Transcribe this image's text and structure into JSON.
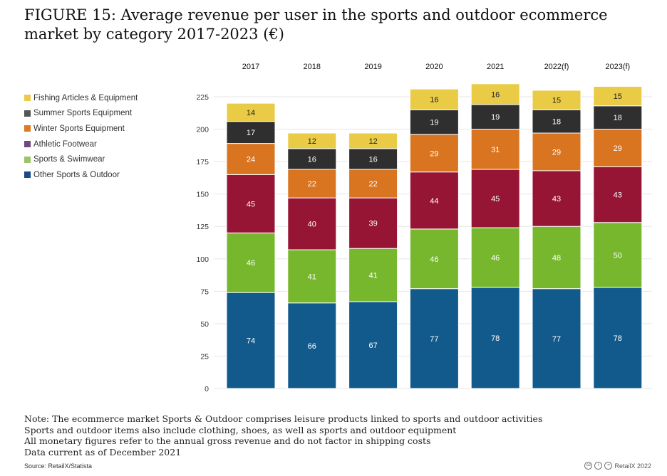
{
  "title": "FIGURE 15: Average revenue per user in the sports and outdoor ecommerce market by category 2017-2023 (€)",
  "legend": [
    {
      "label": "Fishing Articles & Equipment",
      "color": "#ecc94b"
    },
    {
      "label": "Summer Sports Equipment",
      "color": "#555555"
    },
    {
      "label": "Winter Sports Equipment",
      "color": "#dd7a22"
    },
    {
      "label": "Athletic Footwear",
      "color": "#6e4a7e"
    },
    {
      "label": "Sports & Swimwear",
      "color": "#9cc46a"
    },
    {
      "label": "Other Sports & Outdoor",
      "color": "#1a4a8a"
    }
  ],
  "chart_data": {
    "type": "bar",
    "stacked": true,
    "categories": [
      "2017",
      "2018",
      "2019",
      "2020",
      "2021",
      "2022(f)",
      "2023(f)"
    ],
    "series": [
      {
        "name": "Other Sports & Outdoor",
        "color": "#135a8c",
        "values": [
          74,
          66,
          67,
          77,
          78,
          77,
          78
        ]
      },
      {
        "name": "Sports & Swimwear",
        "color": "#76b72e",
        "values": [
          46,
          41,
          41,
          46,
          46,
          48,
          50
        ]
      },
      {
        "name": "Athletic Footwear",
        "color": "#961535",
        "values": [
          45,
          40,
          39,
          44,
          45,
          43,
          43
        ]
      },
      {
        "name": "Winter Sports Equipment",
        "color": "#d97420",
        "values": [
          24,
          22,
          22,
          29,
          31,
          29,
          29
        ]
      },
      {
        "name": "Summer Sports Equipment",
        "color": "#2f2f2f",
        "values": [
          17,
          16,
          16,
          19,
          19,
          18,
          18
        ]
      },
      {
        "name": "Fishing Articles & Equipment",
        "color": "#eacb45",
        "values": [
          14,
          12,
          12,
          16,
          16,
          15,
          15
        ]
      }
    ],
    "yticks": [
      0,
      25,
      50,
      75,
      100,
      125,
      150,
      175,
      200,
      225
    ],
    "ylim": [
      0,
      225
    ],
    "xlabel": "",
    "ylabel": "",
    "grid": true,
    "legend_position": "left"
  },
  "notes": [
    "Note: The ecommerce market Sports & Outdoor comprises leisure products linked to sports and outdoor activities",
    "Sports and outdoor items also include clothing, shoes, as well as sports and outdoor equipment",
    "All monetary figures refer to the annual gross revenue and do not factor in shipping costs",
    "Data current as of December 2021"
  ],
  "source": "Source: RetailX/Statista",
  "credit": "RetailX 2022"
}
